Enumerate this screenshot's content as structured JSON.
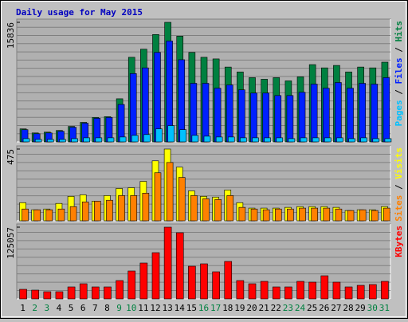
{
  "title": "Daily usage for May 2015",
  "chart_data": [
    {
      "type": "bar",
      "ylim": [
        0,
        15836
      ],
      "yticks": [
        15836
      ],
      "grid": true,
      "series": [
        {
          "name": "Hits",
          "color": "#008040",
          "values": [
            1723,
            1185,
            1293,
            1508,
            2047,
            2585,
            3232,
            3339,
            5710,
            11204,
            12281,
            14220,
            15836,
            14005,
            11850,
            11204,
            10988,
            9911,
            9265,
            8510,
            8295,
            8510,
            8080,
            8618,
            10234,
            9803,
            10126,
            9265,
            9911,
            9803,
            10557
          ]
        },
        {
          "name": "Files",
          "color": "#0020ff",
          "values": [
            1616,
            1077,
            1185,
            1400,
            1939,
            2478,
            3124,
            3232,
            4955,
            9049,
            9803,
            11850,
            13358,
            10880,
            7756,
            7756,
            7110,
            7541,
            6895,
            6464,
            6464,
            6140,
            6140,
            6571,
            7649,
            7110,
            7864,
            7110,
            7756,
            7649,
            8510
          ]
        },
        {
          "name": "Pages",
          "color": "#00c0ff",
          "values": [
            431,
            323,
            323,
            323,
            431,
            539,
            539,
            539,
            646,
            862,
            970,
            1724,
            2155,
            1616,
            862,
            754,
            646,
            646,
            539,
            539,
            539,
            539,
            431,
            539,
            539,
            539,
            539,
            431,
            539,
            431,
            431
          ]
        }
      ]
    },
    {
      "type": "bar",
      "ylim": [
        0,
        475
      ],
      "yticks": [
        475
      ],
      "grid": true,
      "series": [
        {
          "name": "Visits",
          "color": "#ffff00",
          "values": [
            120,
            73,
            78,
            115,
            162,
            172,
            130,
            167,
            214,
            219,
            261,
            397,
            475,
            355,
            198,
            162,
            157,
            204,
            120,
            84,
            84,
            84,
            89,
            94,
            94,
            94,
            89,
            68,
            73,
            73,
            94
          ]
        },
        {
          "name": "Sites",
          "color": "#ff8000",
          "values": [
            78,
            73,
            73,
            78,
            94,
            125,
            130,
            136,
            167,
            167,
            183,
            318,
            386,
            287,
            167,
            146,
            141,
            167,
            89,
            78,
            73,
            78,
            78,
            84,
            84,
            84,
            78,
            68,
            73,
            68,
            84
          ]
        }
      ]
    },
    {
      "type": "bar",
      "ylim": [
        0,
        125057
      ],
      "yticks": [
        125057
      ],
      "grid": true,
      "categories": [
        "1",
        "2",
        "3",
        "4",
        "5",
        "6",
        "7",
        "8",
        "9",
        "10",
        "11",
        "12",
        "13",
        "14",
        "15",
        "16",
        "17",
        "18",
        "19",
        "20",
        "21",
        "22",
        "23",
        "24",
        "25",
        "26",
        "27",
        "28",
        "29",
        "30",
        "31"
      ],
      "category_colors": [
        "#000000",
        "#008040",
        "#008040",
        "#000000",
        "#000000",
        "#000000",
        "#000000",
        "#000000",
        "#008040",
        "#008040",
        "#000000",
        "#000000",
        "#000000",
        "#000000",
        "#000000",
        "#008040",
        "#008040",
        "#000000",
        "#000000",
        "#000000",
        "#000000",
        "#000000",
        "#008040",
        "#008040",
        "#000000",
        "#000000",
        "#000000",
        "#000000",
        "#000000",
        "#008040",
        "#008040"
      ],
      "series": [
        {
          "name": "KBytes",
          "color": "#ff0000",
          "values": [
            16674,
            15285,
            12506,
            12506,
            20843,
            26401,
            20843,
            20843,
            31959,
            48633,
            62529,
            80592,
            125057,
            115330,
            56970,
            61139,
            47244,
            65308,
            31959,
            26401,
            30570,
            20843,
            20843,
            30570,
            29180,
            40296,
            29180,
            20843,
            23622,
            25011,
            30570
          ]
        }
      ]
    }
  ]
}
